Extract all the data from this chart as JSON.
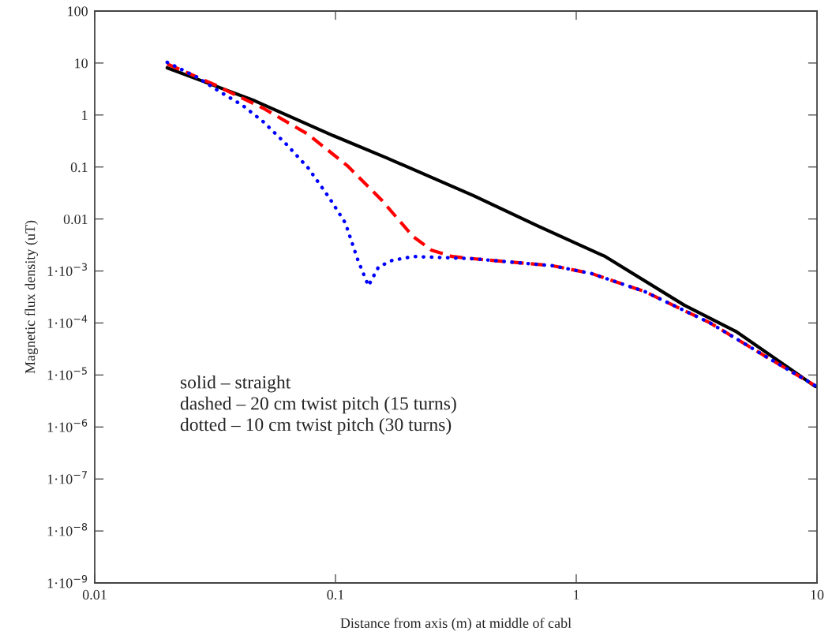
{
  "chart_data": {
    "type": "line",
    "xlabel": "Distance from axis (m) at middle of cabl",
    "ylabel": "Magnetic flux density (uT)",
    "log": "xy",
    "grid": false,
    "xlim": [
      0.01,
      10
    ],
    "xticks": [
      0.01,
      0.1,
      1,
      10
    ],
    "ylim": [
      1e-09,
      100
    ],
    "yticks": [
      {
        "value": 1e-09,
        "label": "1·10$^{−9}$"
      },
      {
        "value": 1e-08,
        "label": "1·10$^{−8}$"
      },
      {
        "value": 1e-07,
        "label": "1·10$^{−7}$"
      },
      {
        "value": 1e-06,
        "label": "1·10$^{−6}$"
      },
      {
        "value": 1e-05,
        "label": "1·10$^{−5}$"
      },
      {
        "value": 0.0001,
        "label": "1·10$^{−4}$"
      },
      {
        "value": 0.001,
        "label": "1·10$^{−3}$"
      },
      0.01,
      0.1,
      1,
      10,
      100
    ],
    "annotations": [
      "solid – straight",
      "dashed – 20 cm twist pitch (15 turns)",
      "dotted – 10 cm twist pitch (30 turns)"
    ],
    "series": [
      {
        "color": "#000000",
        "line_style": "solid",
        "x": [
          0.02,
          0.0464,
          0.098,
          0.163,
          0.375,
          0.7,
          1.32,
          2.81,
          4.6,
          9.85
        ],
        "values": [
          8.1,
          1.86,
          0.4,
          0.15,
          0.028,
          0.0072,
          0.0019,
          0.00022,
          6.9e-05,
          6e-06
        ]
      },
      {
        "color": "#ff0000",
        "line_style": "dashed",
        "x": [
          0.02,
          0.0318,
          0.05,
          0.0767,
          0.112,
          0.155,
          0.21,
          0.251,
          0.305,
          0.375,
          0.8,
          1.16,
          1.93,
          3.6,
          6.0,
          9.85
        ],
        "values": [
          9.6,
          3.75,
          1.36,
          0.43,
          0.106,
          0.0235,
          0.0046,
          0.0025,
          0.0019,
          0.00172,
          0.00126,
          0.00089,
          0.0004,
          0.0001,
          2.4e-05,
          6.2e-06
        ]
      },
      {
        "color": "#0000ff",
        "line_style": "dotted",
        "x": [
          0.02,
          0.0267,
          0.0327,
          0.041,
          0.05,
          0.0627,
          0.077,
          0.094,
          0.11,
          0.124,
          0.137,
          0.151,
          0.172,
          0.21,
          0.375,
          0.8,
          1.16,
          1.93,
          3.6,
          6.0,
          9.85
        ],
        "values": [
          10.3,
          5.3,
          2.9,
          1.55,
          0.75,
          0.27,
          0.096,
          0.026,
          0.0083,
          0.0016,
          0.00052,
          0.0012,
          0.0016,
          0.0019,
          0.00172,
          0.00126,
          0.00089,
          0.0004,
          0.0001,
          2.4e-05,
          6.2e-06
        ]
      }
    ]
  }
}
